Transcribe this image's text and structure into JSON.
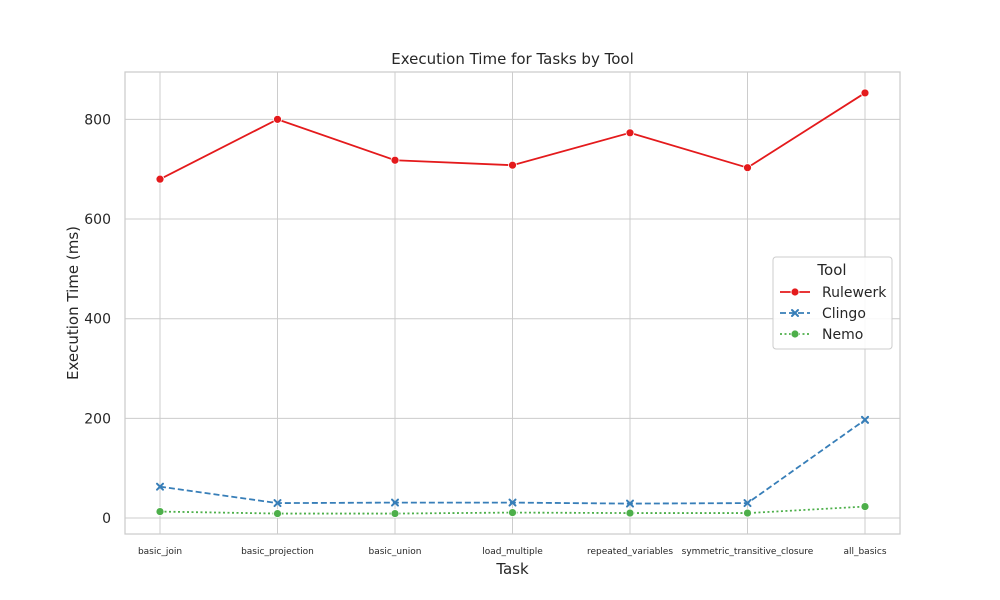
{
  "chart_data": {
    "type": "line",
    "title": "Execution Time for Tasks by Tool",
    "xlabel": "Task",
    "ylabel": "Execution Time (ms)",
    "categories": [
      "basic_join",
      "basic_projection",
      "basic_union",
      "load_multiple",
      "repeated_variables",
      "symmetric_transitive_closure",
      "all_basics"
    ],
    "yticks": [
      0,
      200,
      400,
      600,
      800
    ],
    "ylim": [
      -32,
      895
    ],
    "grid": true,
    "legend": {
      "title": "Tool",
      "placement": "center-right"
    },
    "series": [
      {
        "name": "Rulewerk",
        "color": "#e41a1c",
        "dash": "solid",
        "marker": "circle",
        "values": [
          680,
          800,
          718,
          708,
          773,
          703,
          853
        ]
      },
      {
        "name": "Clingo",
        "color": "#377eb8",
        "dash": "dashed",
        "marker": "x",
        "values": [
          63,
          30,
          31,
          31,
          29,
          30,
          197
        ]
      },
      {
        "name": "Nemo",
        "color": "#4daf4a",
        "dash": "dotted",
        "marker": "circle",
        "values": [
          13,
          9,
          9,
          11,
          10,
          10,
          23
        ]
      }
    ]
  }
}
